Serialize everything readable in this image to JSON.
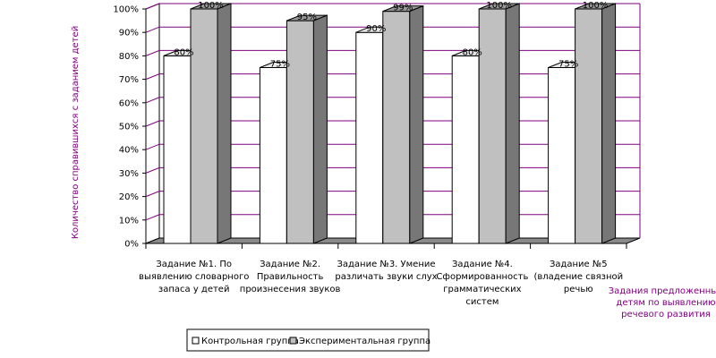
{
  "chart_data": {
    "type": "bar",
    "ylabel": "Количество справившихся с заданием детей",
    "xlabel": [
      "Задания предложенные",
      "детям по выявлению",
      "речевого развития"
    ],
    "ylim": [
      0,
      100
    ],
    "yticks": [
      "0%",
      "10%",
      "20%",
      "30%",
      "40%",
      "50%",
      "60%",
      "70%",
      "80%",
      "90%",
      "100%"
    ],
    "categories": [
      [
        "Задание №1. По",
        "выявлению словарного",
        "запаса у детей"
      ],
      [
        "Задание №2.",
        "Правильность",
        "произнесения звуков"
      ],
      [
        "Задание №3. Умение",
        "различать звуки слух"
      ],
      [
        "Задание №4.",
        "Сформированность",
        "грамматических",
        "систем"
      ],
      [
        "Задание №5",
        "(владение связной",
        "речью"
      ]
    ],
    "series": [
      {
        "name": "Контрольная группа",
        "values": [
          80,
          75,
          90,
          80,
          75
        ],
        "labels": [
          "80%",
          "75%",
          "90%",
          "80%",
          "75%"
        ]
      },
      {
        "name": "Экспериментальная группа",
        "values": [
          100,
          95,
          99,
          100,
          100
        ],
        "labels": [
          "100%",
          "95%",
          "99%",
          "100%",
          "100%"
        ]
      }
    ],
    "grid": true,
    "legend": "bottom",
    "colors": {
      "control_front": "#ffffff",
      "control_top": "#e8e8e8",
      "control_side": "#cfcfcf",
      "exp_front": "#c0c0c0",
      "exp_top": "#999999",
      "exp_side": "#777777",
      "grid": "#800080",
      "floor": "#8a8a8a",
      "axis_label": "#800080"
    }
  }
}
